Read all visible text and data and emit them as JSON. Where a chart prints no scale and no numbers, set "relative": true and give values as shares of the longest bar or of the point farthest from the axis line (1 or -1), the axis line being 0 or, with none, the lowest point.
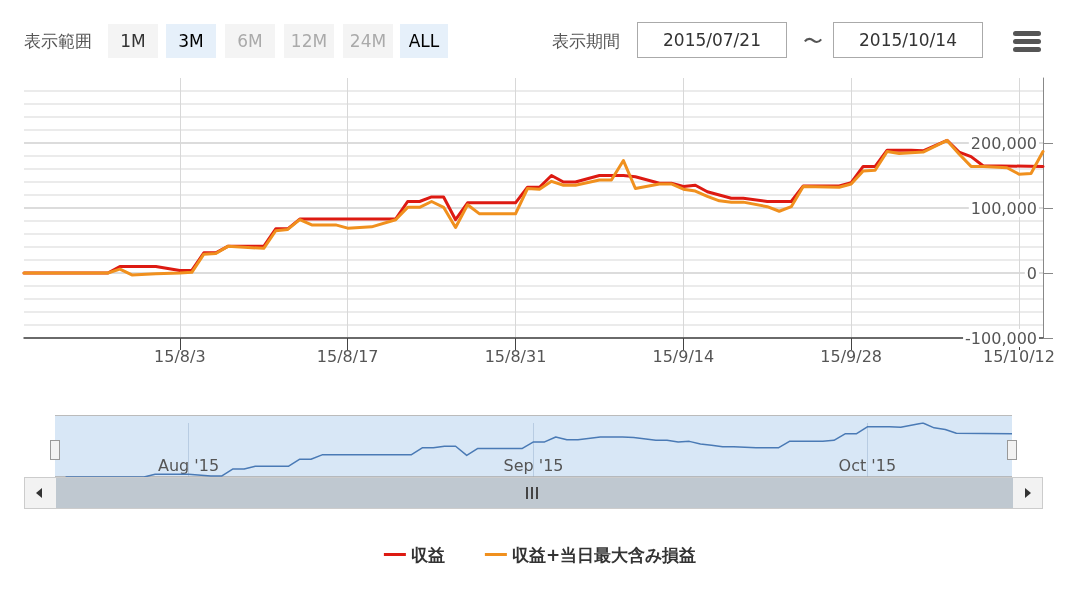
{
  "chart_data": [
    {
      "type": "line",
      "annotations": [
        "表示範囲",
        "1M",
        "3M",
        "6M",
        "12M",
        "24M",
        "ALL",
        "表示期間",
        "2015/07/21",
        "〜",
        "2015/10/14"
      ],
      "series": [
        {
          "name": "収益",
          "color": "#dd1a12",
          "x": [
            "2015-07-21",
            "2015-07-28",
            "2015-07-29",
            "2015-08-01",
            "2015-08-03",
            "2015-08-04",
            "2015-08-05",
            "2015-08-06",
            "2015-08-07",
            "2015-08-10",
            "2015-08-11",
            "2015-08-12",
            "2015-08-13",
            "2015-08-21",
            "2015-08-22",
            "2015-08-23",
            "2015-08-24",
            "2015-08-25",
            "2015-08-26",
            "2015-08-27",
            "2015-08-31",
            "2015-09-01",
            "2015-09-02",
            "2015-09-03",
            "2015-09-04",
            "2015-09-05",
            "2015-09-07",
            "2015-09-09",
            "2015-09-10",
            "2015-09-12",
            "2015-09-13",
            "2015-09-14",
            "2015-09-15",
            "2015-09-16",
            "2015-09-17",
            "2015-09-18",
            "2015-09-19",
            "2015-09-21",
            "2015-09-23",
            "2015-09-24",
            "2015-09-27",
            "2015-09-28",
            "2015-09-29",
            "2015-09-30",
            "2015-10-01",
            "2015-10-03",
            "2015-10-04",
            "2015-10-06",
            "2015-10-07",
            "2015-10-08",
            "2015-10-09",
            "2015-10-14"
          ],
          "values": [
            0,
            0,
            10000,
            10000,
            4000,
            4000,
            31000,
            31000,
            41000,
            41000,
            68000,
            68000,
            83000,
            83000,
            110000,
            110000,
            117000,
            117000,
            82000,
            108000,
            108000,
            132000,
            132000,
            150000,
            140000,
            140000,
            150000,
            150000,
            148000,
            138000,
            138000,
            133000,
            135000,
            125000,
            120000,
            115000,
            115000,
            110000,
            110000,
            134000,
            134000,
            139000,
            164000,
            164000,
            189000,
            189000,
            188000,
            204000,
            186000,
            179000,
            165000,
            164000
          ]
        },
        {
          "name": "収益+当日最大含み損益",
          "color": "#f0901e",
          "x": [
            "2015-07-21",
            "2015-07-28",
            "2015-07-29",
            "2015-07-30",
            "2015-08-01",
            "2015-08-03",
            "2015-08-04",
            "2015-08-05",
            "2015-08-06",
            "2015-08-07",
            "2015-08-10",
            "2015-08-11",
            "2015-08-12",
            "2015-08-13",
            "2015-08-14",
            "2015-08-16",
            "2015-08-17",
            "2015-08-19",
            "2015-08-21",
            "2015-08-22",
            "2015-08-23",
            "2015-08-24",
            "2015-08-25",
            "2015-08-26",
            "2015-08-27",
            "2015-08-28",
            "2015-08-31",
            "2015-09-01",
            "2015-09-02",
            "2015-09-03",
            "2015-09-04",
            "2015-09-05",
            "2015-09-07",
            "2015-09-08",
            "2015-09-09",
            "2015-09-10",
            "2015-09-12",
            "2015-09-13",
            "2015-09-14",
            "2015-09-15",
            "2015-09-16",
            "2015-09-17",
            "2015-09-18",
            "2015-09-19",
            "2015-09-21",
            "2015-09-22",
            "2015-09-23",
            "2015-09-24",
            "2015-09-27",
            "2015-09-28",
            "2015-09-29",
            "2015-09-30",
            "2015-10-01",
            "2015-10-02",
            "2015-10-04",
            "2015-10-06",
            "2015-10-07",
            "2015-10-08",
            "2015-10-09",
            "2015-10-11",
            "2015-10-12",
            "2015-10-13",
            "2015-10-14"
          ],
          "values": [
            0,
            0,
            6000,
            -3000,
            -1000,
            0,
            1000,
            29000,
            30000,
            41000,
            38000,
            65000,
            67000,
            82000,
            74000,
            74000,
            69000,
            71000,
            82000,
            101000,
            101000,
            110000,
            101000,
            70000,
            105000,
            91000,
            91000,
            130000,
            129000,
            141000,
            135000,
            135000,
            143000,
            143000,
            173000,
            130000,
            137000,
            137000,
            129000,
            126000,
            118000,
            111000,
            109000,
            109000,
            102000,
            95000,
            102000,
            133000,
            132000,
            137000,
            157000,
            158000,
            187000,
            184000,
            186000,
            204000,
            183000,
            164000,
            164000,
            162000,
            152000,
            153000,
            187000
          ]
        }
      ],
      "xlim": [
        "2015-07-21",
        "2015-10-14"
      ],
      "xticks": [
        {
          "value": "2015-08-03",
          "label": "15/8/3"
        },
        {
          "value": "2015-08-17",
          "label": "15/8/17"
        },
        {
          "value": "2015-08-31",
          "label": "15/8/31"
        },
        {
          "value": "2015-09-14",
          "label": "15/9/14"
        },
        {
          "value": "2015-09-28",
          "label": "15/9/28"
        },
        {
          "value": "2015-10-12",
          "label": "15/10/12"
        }
      ],
      "ylim": [
        -100000,
        300000
      ],
      "yticks": [
        {
          "value": -100000,
          "label": "-100,000"
        },
        0,
        {
          "value": 100000,
          "label": "100,000"
        },
        {
          "value": 200000,
          "label": "200,000"
        }
      ],
      "grid": true,
      "legend": "bottom",
      "marker": "none",
      "line_style": "solid"
    },
    {
      "type": "line",
      "relative": true,
      "series": [
        {
          "color": "#4a7ab5",
          "x": [
            "2015-07-21",
            "2015-07-28",
            "2015-07-29",
            "2015-08-01",
            "2015-08-03",
            "2015-08-04",
            "2015-08-05",
            "2015-08-06",
            "2015-08-07",
            "2015-08-10",
            "2015-08-11",
            "2015-08-12",
            "2015-08-13",
            "2015-08-21",
            "2015-08-22",
            "2015-08-23",
            "2015-08-24",
            "2015-08-25",
            "2015-08-26",
            "2015-08-27",
            "2015-08-31",
            "2015-09-01",
            "2015-09-02",
            "2015-09-03",
            "2015-09-04",
            "2015-09-05",
            "2015-09-07",
            "2015-09-09",
            "2015-09-10",
            "2015-09-12",
            "2015-09-13",
            "2015-09-14",
            "2015-09-15",
            "2015-09-16",
            "2015-09-17",
            "2015-09-18",
            "2015-09-19",
            "2015-09-21",
            "2015-09-23",
            "2015-09-24",
            "2015-09-27",
            "2015-09-28",
            "2015-09-29",
            "2015-09-30",
            "2015-10-01",
            "2015-10-03",
            "2015-10-04",
            "2015-10-06",
            "2015-10-07",
            "2015-10-08",
            "2015-10-09",
            "2015-10-14"
          ],
          "values": [
            0,
            0,
            0.05,
            0.05,
            0.02,
            0.02,
            0.15,
            0.15,
            0.2,
            0.2,
            0.33,
            0.33,
            0.41,
            0.41,
            0.54,
            0.54,
            0.57,
            0.57,
            0.4,
            0.53,
            0.53,
            0.65,
            0.65,
            0.74,
            0.69,
            0.69,
            0.74,
            0.74,
            0.73,
            0.68,
            0.68,
            0.65,
            0.66,
            0.61,
            0.59,
            0.56,
            0.56,
            0.54,
            0.54,
            0.66,
            0.66,
            0.68,
            0.8,
            0.8,
            0.93,
            0.93,
            0.92,
            1,
            0.91,
            0.88,
            0.81,
            0.8
          ]
        }
      ],
      "xlim": [
        "2015-07-20",
        "2015-10-14"
      ],
      "xticks": [
        {
          "value": "2015-08-01",
          "label": "Aug '15"
        },
        {
          "value": "2015-09-01",
          "label": "Sep '15"
        },
        {
          "value": "2015-10-01",
          "label": "Oct '15"
        }
      ],
      "tick_labels": "x",
      "grid": "x",
      "marker": "none"
    }
  ]
}
